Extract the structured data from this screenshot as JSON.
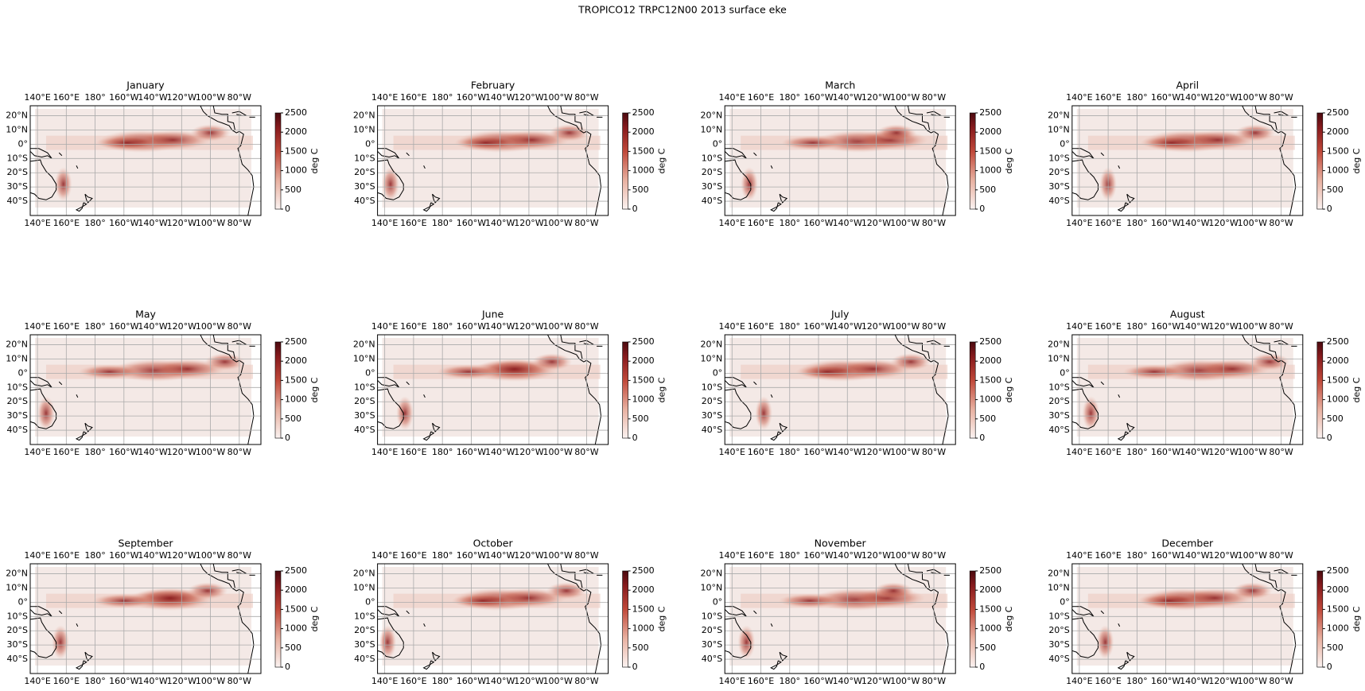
{
  "title": "TROPICO12 TRPC12N00 2013 surface eke",
  "panels": [
    {
      "title": "January"
    },
    {
      "title": "February"
    },
    {
      "title": "March"
    },
    {
      "title": "April"
    },
    {
      "title": "May"
    },
    {
      "title": "June"
    },
    {
      "title": "July"
    },
    {
      "title": "August"
    },
    {
      "title": "September"
    },
    {
      "title": "October"
    },
    {
      "title": "November"
    },
    {
      "title": "December"
    }
  ],
  "lon_range": [
    135,
    295
  ],
  "lat_range": [
    -50,
    27
  ],
  "lon_ticks": [
    {
      "value": 140,
      "label": "140°E"
    },
    {
      "value": 160,
      "label": "160°E"
    },
    {
      "value": 180,
      "label": "180°"
    },
    {
      "value": 200,
      "label": "160°W"
    },
    {
      "value": 220,
      "label": "140°W"
    },
    {
      "value": 240,
      "label": "120°W"
    },
    {
      "value": 260,
      "label": "100°W"
    },
    {
      "value": 280,
      "label": "80°W"
    }
  ],
  "lat_ticks": [
    {
      "value": 20,
      "label": "20°N"
    },
    {
      "value": 10,
      "label": "10°N"
    },
    {
      "value": 0,
      "label": "0°"
    },
    {
      "value": -10,
      "label": "10°S"
    },
    {
      "value": -20,
      "label": "20°S"
    },
    {
      "value": -30,
      "label": "30°S"
    },
    {
      "value": -40,
      "label": "40°S"
    }
  ],
  "colorbar": {
    "label": "deg C",
    "lim": [
      0,
      2500
    ],
    "ticks": [
      0,
      500,
      1000,
      1500,
      2000,
      2500
    ]
  }
}
